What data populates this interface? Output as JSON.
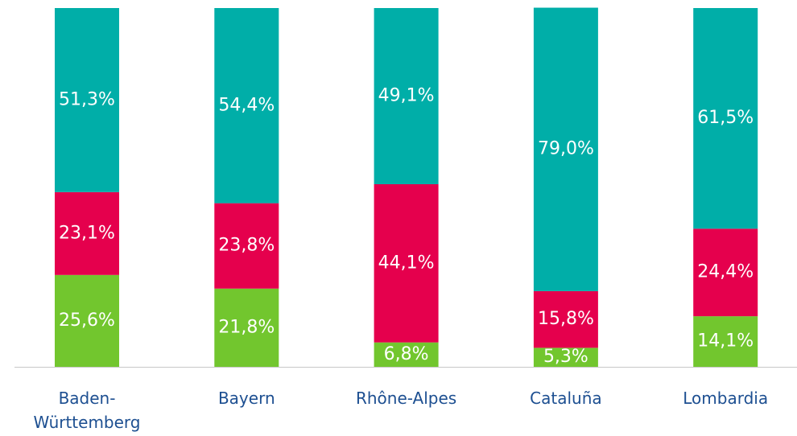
{
  "chart_data": {
    "type": "bar",
    "stacked": true,
    "categories": [
      "Baden-Württemberg",
      "Bayern",
      "Rhône-Alpes",
      "Cataluña",
      "Lombardia"
    ],
    "ylim": [
      0,
      100
    ],
    "series": [
      {
        "color": "#72c62e",
        "values": [
          25.6,
          21.8,
          6.8,
          5.3,
          14.1
        ],
        "value_labels": [
          "25,6%",
          "21,8%",
          "6,8%",
          "5,3%",
          "14,1%"
        ]
      },
      {
        "color": "#e5004d",
        "values": [
          23.1,
          23.8,
          44.1,
          15.8,
          24.4
        ],
        "value_labels": [
          "23,1%",
          "23,8%",
          "44,1%",
          "15,8%",
          "24,4%"
        ]
      },
      {
        "color": "#00aea8",
        "values": [
          51.3,
          54.4,
          49.1,
          79.0,
          61.5
        ],
        "value_labels": [
          "51,3%",
          "54,4%",
          "49,1%",
          "79,0%",
          "61,5%"
        ]
      }
    ]
  }
}
